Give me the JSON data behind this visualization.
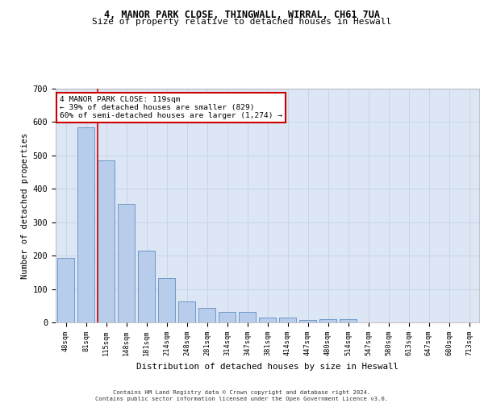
{
  "title_line1": "4, MANOR PARK CLOSE, THINGWALL, WIRRAL, CH61 7UA",
  "title_line2": "Size of property relative to detached houses in Heswall",
  "xlabel": "Distribution of detached houses by size in Heswall",
  "ylabel": "Number of detached properties",
  "bar_labels": [
    "48sqm",
    "81sqm",
    "115sqm",
    "148sqm",
    "181sqm",
    "214sqm",
    "248sqm",
    "281sqm",
    "314sqm",
    "347sqm",
    "381sqm",
    "414sqm",
    "447sqm",
    "480sqm",
    "514sqm",
    "547sqm",
    "580sqm",
    "613sqm",
    "647sqm",
    "680sqm",
    "713sqm"
  ],
  "bar_values": [
    192,
    583,
    485,
    355,
    215,
    132,
    63,
    43,
    31,
    31,
    15,
    15,
    8,
    10,
    10,
    0,
    0,
    0,
    0,
    0,
    0
  ],
  "bar_color": "#b8ccec",
  "bar_edge_color": "#6090c0",
  "subject_bar_index": 2,
  "annotation_title": "4 MANOR PARK CLOSE: 119sqm",
  "annotation_line1": "← 39% of detached houses are smaller (829)",
  "annotation_line2": "60% of semi-detached houses are larger (1,274) →",
  "annotation_box_color": "#ffffff",
  "annotation_box_edge": "#cc0000",
  "ylim": [
    0,
    700
  ],
  "yticks": [
    0,
    100,
    200,
    300,
    400,
    500,
    600,
    700
  ],
  "grid_color": "#c8d4e8",
  "bg_color": "#dce6f5",
  "footer_line1": "Contains HM Land Registry data © Crown copyright and database right 2024.",
  "footer_line2": "Contains public sector information licensed under the Open Government Licence v3.0."
}
